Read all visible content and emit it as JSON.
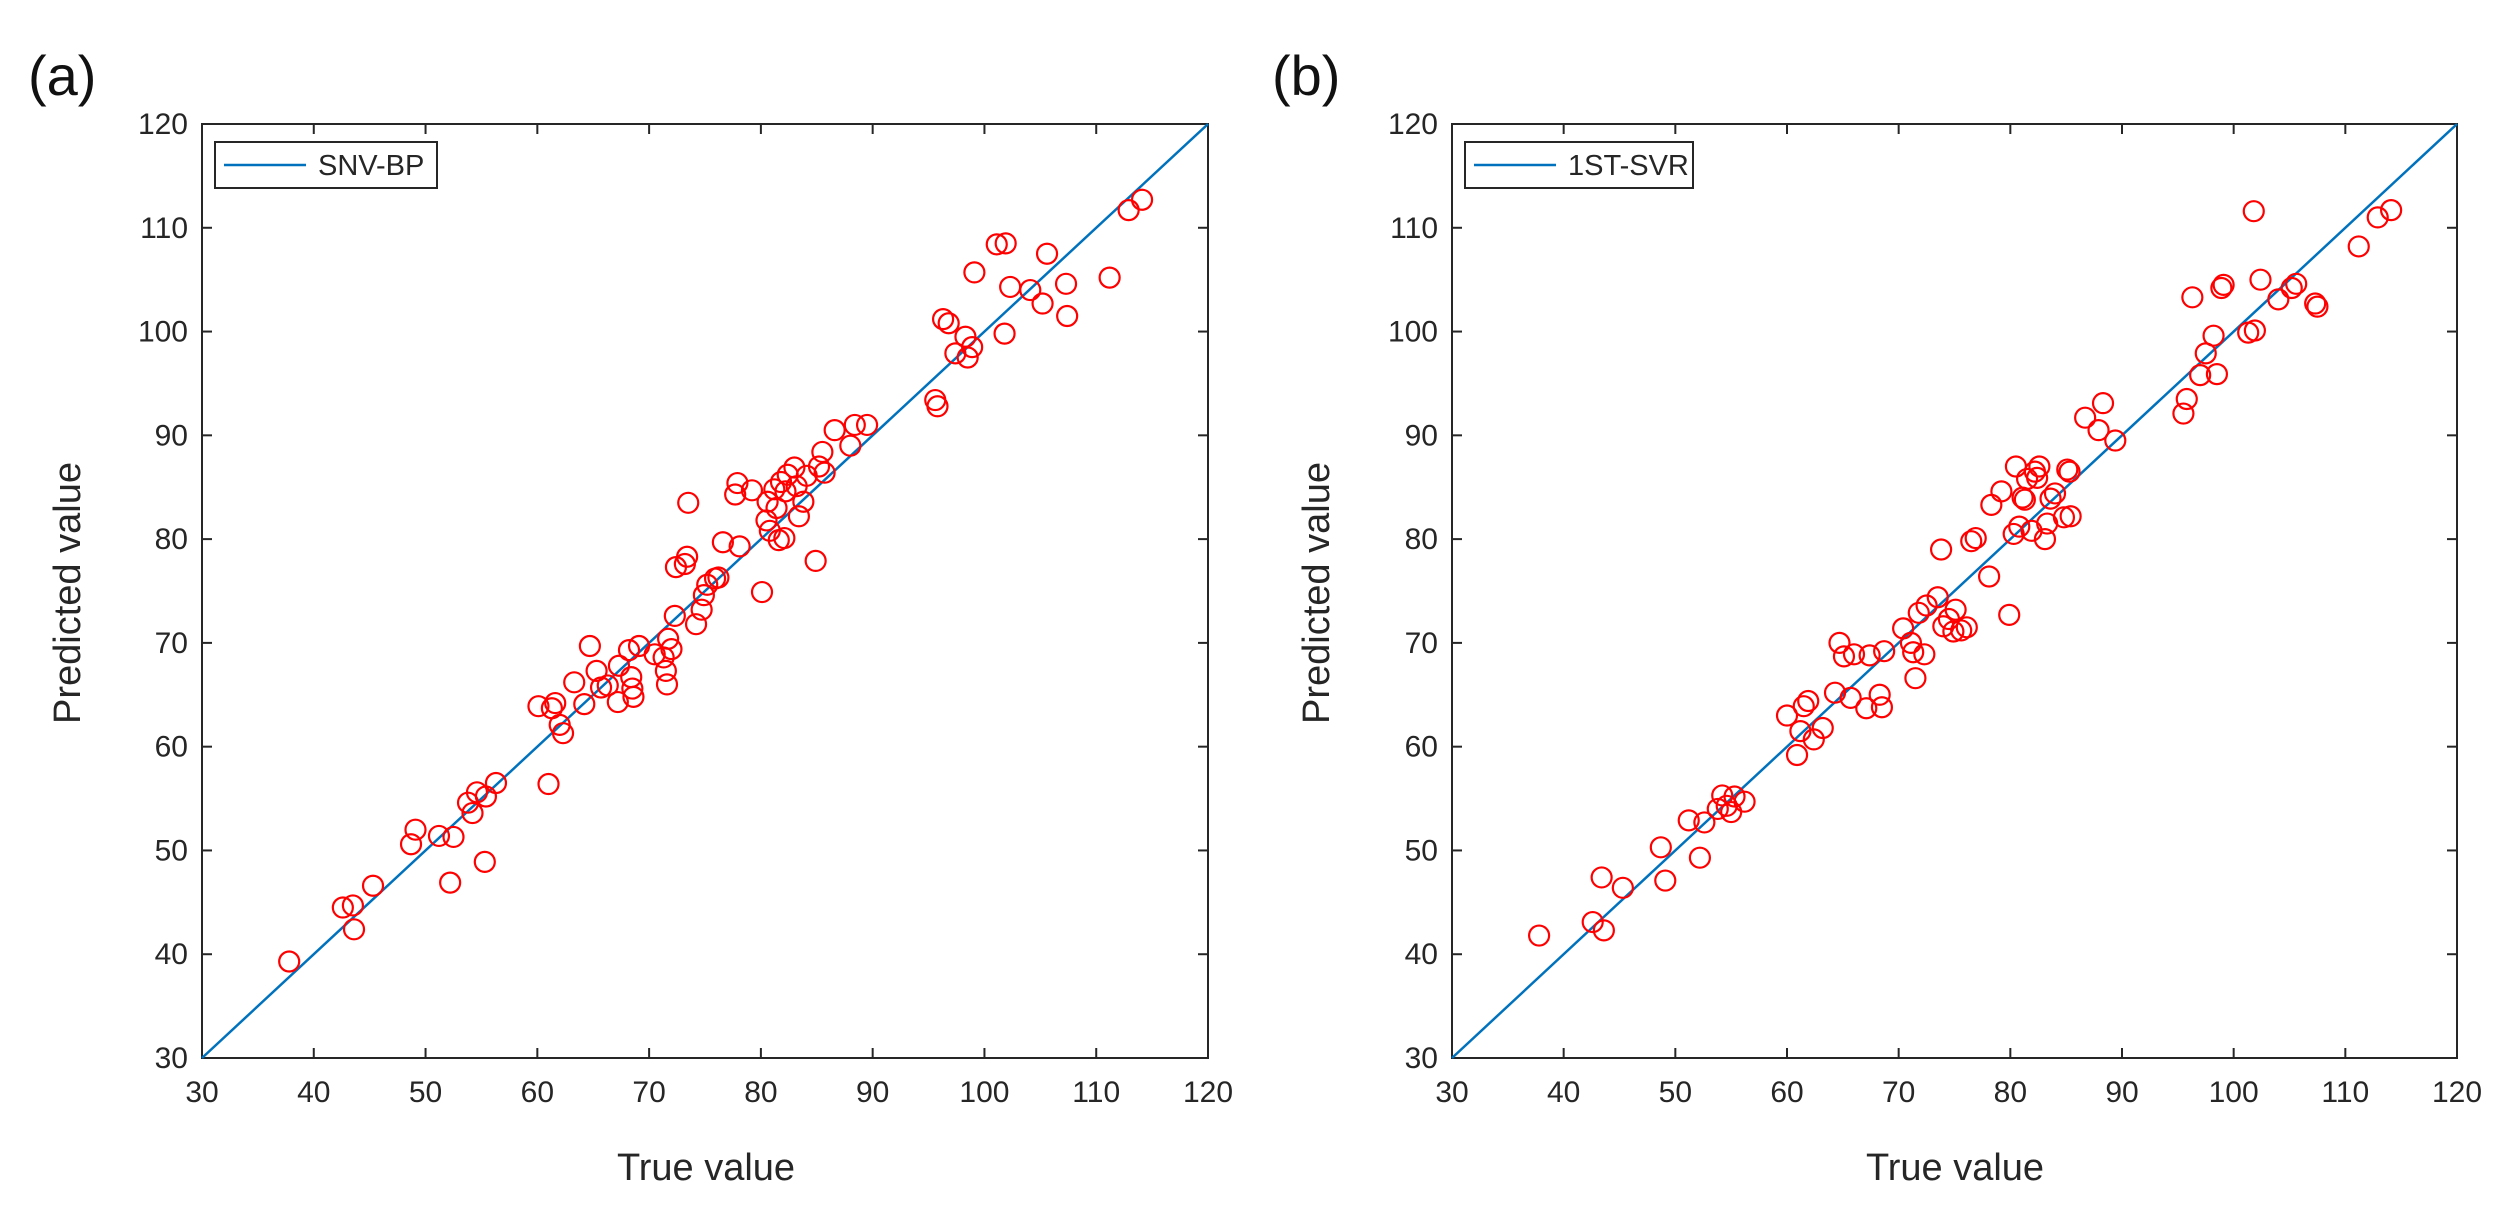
{
  "chart_data": [
    {
      "type": "scatter",
      "panel_label": "(a)",
      "legend": "SNV-BP",
      "legend_position": "top-left",
      "xlabel": "True value",
      "ylabel": "Predicted value",
      "xlim": [
        30,
        120
      ],
      "ylim": [
        30,
        120
      ],
      "xticks": [
        "30",
        "40",
        "50",
        "60",
        "70",
        "80",
        "90",
        "100",
        "110",
        "120"
      ],
      "yticks": [
        "30",
        "40",
        "50",
        "60",
        "70",
        "80",
        "90",
        "100",
        "110",
        "120"
      ],
      "reference_line": {
        "from": [
          30,
          30
        ],
        "to": [
          120,
          120
        ]
      },
      "marker": "circle",
      "line_color": "#0072BD",
      "marker_color": "#FF0000",
      "points": [
        [
          37.8,
          39.3
        ],
        [
          42.6,
          44.5
        ],
        [
          43.5,
          44.7
        ],
        [
          43.6,
          42.4
        ],
        [
          45.3,
          46.6
        ],
        [
          48.7,
          50.6
        ],
        [
          49.1,
          52.0
        ],
        [
          51.2,
          51.4
        ],
        [
          52.2,
          46.9
        ],
        [
          52.5,
          51.3
        ],
        [
          53.8,
          54.6
        ],
        [
          54.2,
          53.6
        ],
        [
          54.6,
          55.6
        ],
        [
          55.3,
          48.9
        ],
        [
          55.4,
          55.2
        ],
        [
          56.3,
          56.5
        ],
        [
          60.1,
          63.9
        ],
        [
          61.0,
          56.4
        ],
        [
          61.3,
          63.7
        ],
        [
          61.6,
          64.2
        ],
        [
          62.0,
          62.1
        ],
        [
          62.3,
          61.3
        ],
        [
          63.3,
          66.2
        ],
        [
          64.2,
          64.1
        ],
        [
          64.7,
          69.7
        ],
        [
          65.3,
          67.3
        ],
        [
          65.7,
          65.7
        ],
        [
          66.3,
          65.9
        ],
        [
          67.2,
          64.3
        ],
        [
          67.3,
          67.8
        ],
        [
          68.2,
          69.3
        ],
        [
          68.4,
          66.7
        ],
        [
          68.5,
          65.6
        ],
        [
          68.6,
          64.8
        ],
        [
          69.1,
          69.7
        ],
        [
          70.5,
          68.9
        ],
        [
          71.3,
          68.6
        ],
        [
          71.5,
          67.3
        ],
        [
          71.6,
          66.0
        ],
        [
          71.7,
          70.4
        ],
        [
          72.0,
          69.4
        ],
        [
          72.3,
          72.6
        ],
        [
          72.4,
          77.3
        ],
        [
          73.2,
          77.6
        ],
        [
          73.4,
          78.3
        ],
        [
          73.5,
          83.5
        ],
        [
          74.2,
          71.8
        ],
        [
          74.7,
          73.2
        ],
        [
          74.9,
          74.6
        ],
        [
          75.2,
          75.6
        ],
        [
          75.9,
          76.2
        ],
        [
          76.2,
          76.3
        ],
        [
          76.6,
          79.7
        ],
        [
          77.7,
          84.3
        ],
        [
          77.9,
          85.4
        ],
        [
          78.1,
          79.3
        ],
        [
          79.2,
          84.7
        ],
        [
          80.1,
          74.9
        ],
        [
          80.5,
          81.8
        ],
        [
          80.6,
          83.6
        ],
        [
          80.8,
          80.8
        ],
        [
          81.2,
          84.8
        ],
        [
          81.4,
          83.0
        ],
        [
          81.6,
          79.9
        ],
        [
          81.8,
          85.5
        ],
        [
          82.1,
          80.1
        ],
        [
          82.2,
          84.6
        ],
        [
          82.4,
          86.2
        ],
        [
          83.0,
          86.9
        ],
        [
          83.2,
          85.1
        ],
        [
          83.4,
          82.2
        ],
        [
          83.8,
          83.6
        ],
        [
          84.1,
          86.1
        ],
        [
          84.9,
          77.9
        ],
        [
          85.2,
          87.0
        ],
        [
          85.5,
          88.4
        ],
        [
          85.7,
          86.4
        ],
        [
          86.6,
          90.5
        ],
        [
          88.0,
          89.0
        ],
        [
          88.4,
          91.0
        ],
        [
          89.5,
          91.0
        ],
        [
          95.6,
          93.4
        ],
        [
          95.8,
          92.8
        ],
        [
          96.3,
          101.2
        ],
        [
          96.8,
          100.8
        ],
        [
          97.4,
          97.9
        ],
        [
          98.3,
          99.5
        ],
        [
          98.5,
          97.5
        ],
        [
          98.9,
          98.5
        ],
        [
          99.1,
          105.7
        ],
        [
          101.1,
          108.4
        ],
        [
          101.8,
          99.8
        ],
        [
          101.9,
          108.5
        ],
        [
          102.3,
          104.3
        ],
        [
          104.1,
          104.0
        ],
        [
          105.2,
          102.7
        ],
        [
          105.6,
          107.5
        ],
        [
          107.3,
          104.6
        ],
        [
          107.4,
          101.5
        ],
        [
          111.2,
          105.2
        ],
        [
          112.9,
          111.7
        ],
        [
          114.1,
          112.7
        ]
      ]
    },
    {
      "type": "scatter",
      "panel_label": "(b)",
      "legend": "1ST-SVR",
      "legend_position": "top-left",
      "xlabel": "True value",
      "ylabel": "Predicted value",
      "xlim": [
        30,
        120
      ],
      "ylim": [
        30,
        120
      ],
      "xticks": [
        "30",
        "40",
        "50",
        "60",
        "70",
        "80",
        "90",
        "100",
        "110",
        "120"
      ],
      "yticks": [
        "30",
        "40",
        "50",
        "60",
        "70",
        "80",
        "90",
        "100",
        "110",
        "120"
      ],
      "reference_line": {
        "from": [
          30,
          30
        ],
        "to": [
          120,
          120
        ]
      },
      "marker": "circle",
      "line_color": "#0072BD",
      "marker_color": "#FF0000",
      "points": [
        [
          37.8,
          41.8
        ],
        [
          42.6,
          43.1
        ],
        [
          43.4,
          47.4
        ],
        [
          43.6,
          42.3
        ],
        [
          45.3,
          46.4
        ],
        [
          48.7,
          50.3
        ],
        [
          49.1,
          47.1
        ],
        [
          51.2,
          52.9
        ],
        [
          52.2,
          49.3
        ],
        [
          52.6,
          52.7
        ],
        [
          53.8,
          54.0
        ],
        [
          54.2,
          55.3
        ],
        [
          54.6,
          54.3
        ],
        [
          55.0,
          53.7
        ],
        [
          55.3,
          55.2
        ],
        [
          56.2,
          54.7
        ],
        [
          60.0,
          63.0
        ],
        [
          60.9,
          59.2
        ],
        [
          61.2,
          61.5
        ],
        [
          61.5,
          63.9
        ],
        [
          61.9,
          64.4
        ],
        [
          62.4,
          60.7
        ],
        [
          63.2,
          61.8
        ],
        [
          64.3,
          65.2
        ],
        [
          64.7,
          70.0
        ],
        [
          65.1,
          68.7
        ],
        [
          65.7,
          64.7
        ],
        [
          66.0,
          68.9
        ],
        [
          67.1,
          63.7
        ],
        [
          67.4,
          68.8
        ],
        [
          68.3,
          65.0
        ],
        [
          68.5,
          63.8
        ],
        [
          68.7,
          69.2
        ],
        [
          70.4,
          71.4
        ],
        [
          71.1,
          70.0
        ],
        [
          71.3,
          69.1
        ],
        [
          71.5,
          66.6
        ],
        [
          71.8,
          72.9
        ],
        [
          72.3,
          68.9
        ],
        [
          72.5,
          73.6
        ],
        [
          73.5,
          74.4
        ],
        [
          73.8,
          79.0
        ],
        [
          74.0,
          71.6
        ],
        [
          74.5,
          72.3
        ],
        [
          74.9,
          71.1
        ],
        [
          75.1,
          73.2
        ],
        [
          75.6,
          71.2
        ],
        [
          76.1,
          71.5
        ],
        [
          76.5,
          79.8
        ],
        [
          76.9,
          80.1
        ],
        [
          78.1,
          76.4
        ],
        [
          78.3,
          83.3
        ],
        [
          79.2,
          84.6
        ],
        [
          79.9,
          72.7
        ],
        [
          80.3,
          80.5
        ],
        [
          80.5,
          87.0
        ],
        [
          80.8,
          81.2
        ],
        [
          81.1,
          84.0
        ],
        [
          81.3,
          83.8
        ],
        [
          81.5,
          85.8
        ],
        [
          81.9,
          80.8
        ],
        [
          82.2,
          86.5
        ],
        [
          82.4,
          85.9
        ],
        [
          82.6,
          87.0
        ],
        [
          83.1,
          80.0
        ],
        [
          83.3,
          81.5
        ],
        [
          83.6,
          83.9
        ],
        [
          84.0,
          84.4
        ],
        [
          84.8,
          82.1
        ],
        [
          85.1,
          86.7
        ],
        [
          85.3,
          86.5
        ],
        [
          85.4,
          82.2
        ],
        [
          86.7,
          91.7
        ],
        [
          87.9,
          90.5
        ],
        [
          88.3,
          93.1
        ],
        [
          89.4,
          89.5
        ],
        [
          95.5,
          92.1
        ],
        [
          95.8,
          93.5
        ],
        [
          96.3,
          103.3
        ],
        [
          97.0,
          95.8
        ],
        [
          97.5,
          97.9
        ],
        [
          98.2,
          99.6
        ],
        [
          98.5,
          95.9
        ],
        [
          98.9,
          104.2
        ],
        [
          99.1,
          104.5
        ],
        [
          101.3,
          99.9
        ],
        [
          101.8,
          111.6
        ],
        [
          101.9,
          100.1
        ],
        [
          102.4,
          105.0
        ],
        [
          104.0,
          103.1
        ],
        [
          105.2,
          104.2
        ],
        [
          105.6,
          104.6
        ],
        [
          107.3,
          102.7
        ],
        [
          107.5,
          102.4
        ],
        [
          111.2,
          108.2
        ],
        [
          112.9,
          111.0
        ],
        [
          114.1,
          111.7
        ]
      ]
    }
  ]
}
